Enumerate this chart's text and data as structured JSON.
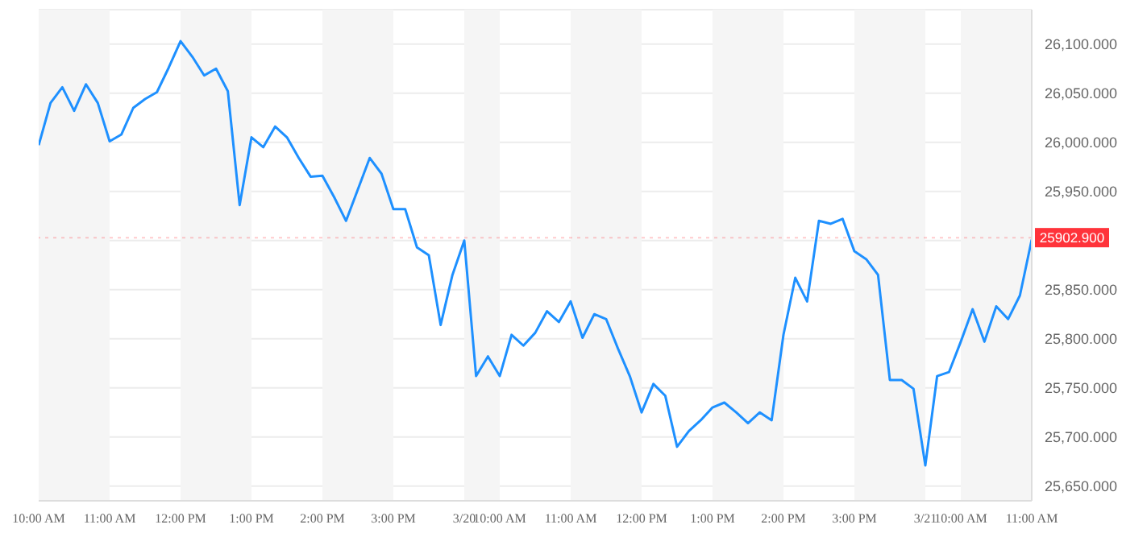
{
  "chart_data": {
    "type": "line",
    "categories": [
      "10:00 AM",
      null,
      null,
      null,
      null,
      null,
      "11:00 AM",
      null,
      null,
      null,
      null,
      null,
      "12:00 PM",
      null,
      null,
      null,
      null,
      null,
      "1:00 PM",
      null,
      null,
      null,
      null,
      null,
      "2:00 PM",
      null,
      null,
      null,
      null,
      null,
      "3:00 PM",
      null,
      null,
      null,
      null,
      null,
      "3/20",
      null,
      null,
      "10:00 AM",
      null,
      null,
      null,
      null,
      null,
      "11:00 AM",
      null,
      null,
      null,
      null,
      null,
      "12:00 PM",
      null,
      null,
      null,
      null,
      null,
      "1:00 PM",
      null,
      null,
      null,
      null,
      null,
      "2:00 PM",
      null,
      null,
      null,
      null,
      null,
      "3:00 PM",
      null,
      null,
      null,
      null,
      null,
      "3/21",
      null,
      null,
      "10:00 AM",
      null,
      null,
      null,
      null,
      null,
      "11:00 AM"
    ],
    "series": [
      {
        "color": "#1e90ff",
        "values": [
          25997,
          26040,
          26056,
          26032,
          26059,
          26040,
          26001,
          26008,
          26035,
          26044,
          26051,
          26076,
          26103,
          26087,
          26068,
          26075,
          26052,
          25936,
          26005,
          25995,
          26016,
          26005,
          25984,
          25965,
          25966,
          25944,
          25920,
          25952,
          25984,
          25968,
          25932,
          25932,
          25893,
          25885,
          25814,
          25865,
          25900,
          25762,
          25782,
          25762,
          25804,
          25793,
          25806,
          25828,
          25817,
          25838,
          25801,
          25825,
          25820,
          25790,
          25762,
          25725,
          25754,
          25742,
          25690,
          25706,
          25717,
          25730,
          25735,
          25725,
          25714,
          25725,
          25717,
          25804,
          25862,
          25838,
          25920,
          25917,
          25922,
          25889,
          25881,
          25865,
          25758,
          25758,
          25749,
          25671,
          25762,
          25766,
          25797,
          25830,
          25797,
          25833,
          25820,
          25844,
          25901
        ]
      }
    ],
    "ylim": [
      25635,
      26135
    ],
    "yticks": [
      {
        "value": 25650,
        "label": "25,650.000"
      },
      {
        "value": 25700,
        "label": "25,700.000"
      },
      {
        "value": 25750,
        "label": "25,750.000"
      },
      {
        "value": 25800,
        "label": "25,800.000"
      },
      {
        "value": 25850,
        "label": "25,850.000"
      },
      {
        "value": 25900,
        "label": null
      },
      {
        "value": 25950,
        "label": "25,950.000"
      },
      {
        "value": 26000,
        "label": "26,000.000"
      },
      {
        "value": 26050,
        "label": "26,050.000"
      },
      {
        "value": 26100,
        "label": "26,100.000"
      }
    ],
    "grid": "y",
    "marker": "none",
    "line_style": "solid",
    "legend": false,
    "ref_lines": [
      {
        "axis": "y",
        "value": 25902.9,
        "label": "25902.900",
        "color": "#ff333a"
      }
    ]
  }
}
